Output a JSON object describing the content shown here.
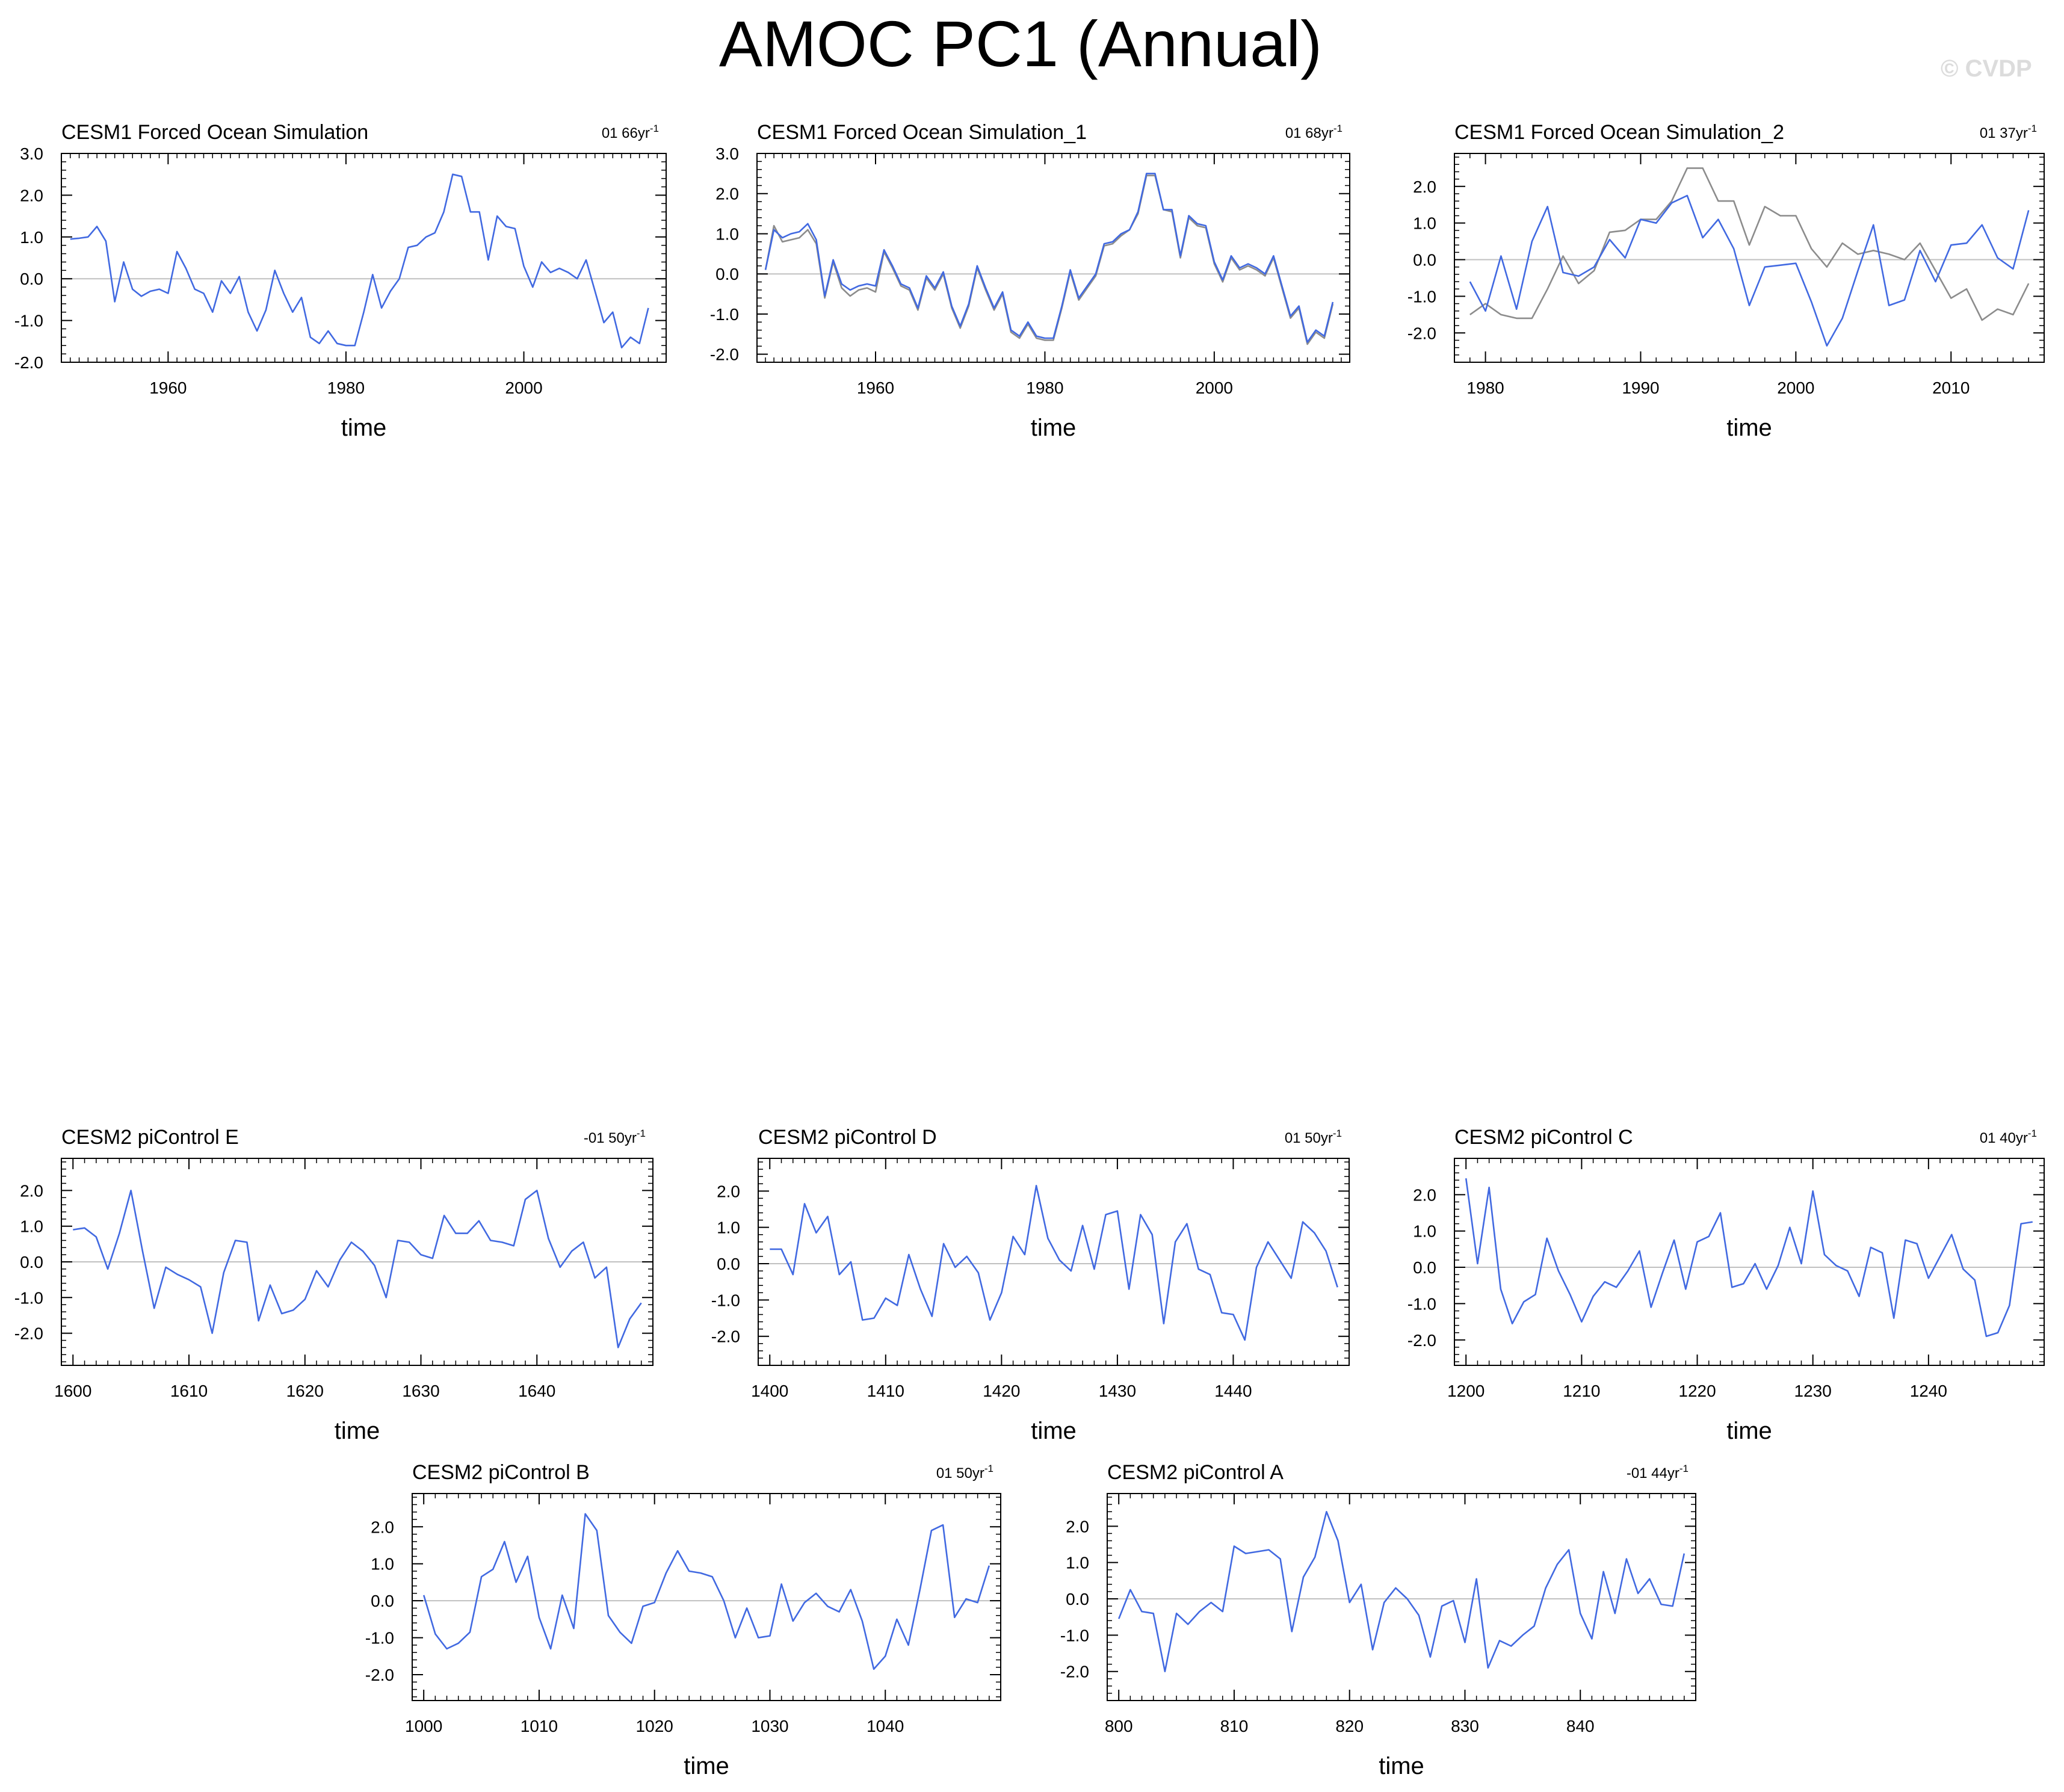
{
  "title": "AMOC PC1 (Annual)",
  "watermark": "© CVDP",
  "colors": {
    "pc": "#4169e1",
    "obs": "#8c8c8c",
    "zero": "#c0c0c0",
    "frame": "#000000"
  },
  "chart_data": [
    {
      "type": "line",
      "title": "CESM1 Forced Ocean Simulation",
      "annotation": "01 66yr-1",
      "xlabel": "time",
      "ylabel": "",
      "xlim": [
        1948,
        2016
      ],
      "ylim": [
        -2.0,
        3.0
      ],
      "xticks": [
        1960,
        1980,
        2000
      ],
      "yticks": [
        -2.0,
        -1.0,
        0.0,
        1.0,
        2.0,
        3.0
      ],
      "grid": false,
      "x_start": 1949,
      "series": [
        {
          "values": [
            0.95,
            0.97,
            1.0,
            1.25,
            0.9,
            -0.55,
            0.4,
            -0.25,
            -0.42,
            -0.3,
            -0.25,
            -0.35,
            0.65,
            0.25,
            -0.25,
            -0.35,
            -0.8,
            -0.05,
            -0.35,
            0.05,
            -0.8,
            -1.25,
            -0.75,
            0.2,
            -0.35,
            -0.8,
            -0.45,
            -1.4,
            -1.55,
            -1.25,
            -1.55,
            -1.6,
            -1.6,
            -0.8,
            0.1,
            -0.7,
            -0.3,
            0.0,
            0.75,
            0.8,
            1.0,
            1.1,
            1.6,
            2.5,
            2.45,
            1.6,
            1.6,
            0.45,
            1.5,
            1.25,
            1.2,
            0.3,
            -0.2,
            0.4,
            0.15,
            0.25,
            0.15,
            0.0,
            0.45,
            -0.3,
            -1.05,
            -0.8,
            -1.65,
            -1.4,
            -1.55,
            -0.7
          ]
        }
      ]
    },
    {
      "type": "line",
      "title": "CESM1 Forced Ocean Simulation_1",
      "annotation": "01 68yr-1",
      "xlabel": "time",
      "ylabel": "",
      "xlim": [
        1946,
        2016
      ],
      "ylim": [
        -2.2,
        3.0
      ],
      "xticks": [
        1960,
        1980,
        2000
      ],
      "yticks": [
        -2.0,
        -1.0,
        0.0,
        1.0,
        2.0,
        3.0
      ],
      "grid": false,
      "x_start": 1947,
      "series": [
        {
          "values": [
            0.1,
            1.1,
            0.9,
            1.0,
            1.05,
            1.25,
            0.85,
            -0.55,
            0.35,
            -0.25,
            -0.4,
            -0.3,
            -0.25,
            -0.3,
            0.6,
            0.2,
            -0.25,
            -0.35,
            -0.85,
            -0.05,
            -0.35,
            0.05,
            -0.8,
            -1.3,
            -0.75,
            0.2,
            -0.35,
            -0.85,
            -0.45,
            -1.4,
            -1.55,
            -1.2,
            -1.55,
            -1.6,
            -1.6,
            -0.8,
            0.1,
            -0.6,
            -0.3,
            0.0,
            0.75,
            0.8,
            1.0,
            1.1,
            1.55,
            2.5,
            2.5,
            1.6,
            1.6,
            0.45,
            1.45,
            1.25,
            1.2,
            0.3,
            -0.15,
            0.45,
            0.15,
            0.25,
            0.15,
            0.0,
            0.45,
            -0.3,
            -1.05,
            -0.8,
            -1.7,
            -1.4,
            -1.55,
            -0.7
          ]
        },
        {
          "values": [
            0.1,
            1.2,
            0.8,
            0.85,
            0.9,
            1.1,
            0.75,
            -0.6,
            0.3,
            -0.35,
            -0.55,
            -0.4,
            -0.35,
            -0.45,
            0.55,
            0.15,
            -0.3,
            -0.4,
            -0.9,
            -0.1,
            -0.4,
            0.0,
            -0.85,
            -1.35,
            -0.8,
            0.15,
            -0.4,
            -0.9,
            -0.5,
            -1.45,
            -1.6,
            -1.25,
            -1.6,
            -1.65,
            -1.65,
            -0.85,
            0.05,
            -0.65,
            -0.35,
            -0.05,
            0.7,
            0.75,
            0.95,
            1.1,
            1.5,
            2.45,
            2.45,
            1.6,
            1.55,
            0.4,
            1.4,
            1.2,
            1.15,
            0.25,
            -0.2,
            0.4,
            0.1,
            0.2,
            0.1,
            -0.05,
            0.4,
            -0.35,
            -1.1,
            -0.85,
            -1.75,
            -1.45,
            -1.6,
            -0.75
          ]
        }
      ]
    },
    {
      "type": "line",
      "title": "CESM1 Forced Ocean Simulation_2",
      "annotation": "01 37yr-1",
      "xlabel": "time",
      "ylabel": "",
      "xlim": [
        1978,
        2016
      ],
      "ylim": [
        -2.8,
        2.9
      ],
      "xticks": [
        1980,
        1990,
        2000,
        2010
      ],
      "yticks": [
        -2.0,
        -1.0,
        0.0,
        1.0,
        2.0
      ],
      "grid": false,
      "x_start": 1979,
      "series": [
        {
          "values": [
            -0.6,
            -1.4,
            0.1,
            -1.35,
            0.5,
            1.45,
            -0.35,
            -0.45,
            -0.2,
            0.55,
            0.05,
            1.1,
            1.0,
            1.55,
            1.75,
            0.6,
            1.1,
            0.3,
            -1.25,
            -0.2,
            -0.15,
            -0.1,
            -1.15,
            -2.35,
            -1.6,
            -0.3,
            0.95,
            -1.25,
            -1.1,
            0.25,
            -0.6,
            0.4,
            0.45,
            0.95,
            0.05,
            -0.25,
            1.35
          ]
        },
        {
          "values": [
            -1.5,
            -1.2,
            -1.5,
            -1.6,
            -1.6,
            -0.8,
            0.1,
            -0.65,
            -0.3,
            0.75,
            0.8,
            1.1,
            1.1,
            1.6,
            2.5,
            2.5,
            1.6,
            1.6,
            0.4,
            1.45,
            1.2,
            1.2,
            0.3,
            -0.2,
            0.45,
            0.15,
            0.25,
            0.15,
            0.0,
            0.45,
            -0.3,
            -1.05,
            -0.8,
            -1.65,
            -1.35,
            -1.5,
            -0.65
          ]
        }
      ]
    },
    {
      "type": "line",
      "title": "CESM2 piControl E",
      "annotation": "-01 50yr-1",
      "xlabel": "time",
      "ylabel": "",
      "xlim": [
        1599,
        1650
      ],
      "ylim": [
        -2.9,
        2.9
      ],
      "xticks": [
        1600,
        1610,
        1620,
        1630,
        1640
      ],
      "yticks": [
        -2.0,
        -1.0,
        0.0,
        1.0,
        2.0
      ],
      "grid": false,
      "x_start": 1600,
      "series": [
        {
          "values": [
            0.9,
            0.95,
            0.7,
            -0.2,
            0.8,
            2.0,
            0.3,
            -1.3,
            -0.15,
            -0.35,
            -0.5,
            -0.7,
            -2.0,
            -0.3,
            0.6,
            0.55,
            -1.65,
            -0.65,
            -1.45,
            -1.35,
            -1.05,
            -0.25,
            -0.7,
            0.05,
            0.55,
            0.3,
            -0.1,
            -1.0,
            0.6,
            0.55,
            0.2,
            0.1,
            1.3,
            0.8,
            0.8,
            1.15,
            0.6,
            0.55,
            0.45,
            1.75,
            2.0,
            0.65,
            -0.15,
            0.3,
            0.55,
            -0.45,
            -0.15,
            -2.4,
            -1.6,
            -1.15
          ]
        }
      ]
    },
    {
      "type": "line",
      "title": "CESM2 piControl D",
      "annotation": "01 50yr-1",
      "xlabel": "time",
      "ylabel": "",
      "xlim": [
        1399,
        1450
      ],
      "ylim": [
        -2.8,
        2.9
      ],
      "xticks": [
        1400,
        1410,
        1420,
        1430,
        1440
      ],
      "yticks": [
        -2.0,
        -1.0,
        0.0,
        1.0,
        2.0
      ],
      "grid": false,
      "x_start": 1400,
      "series": [
        {
          "values": [
            0.4,
            0.4,
            -0.3,
            1.65,
            0.85,
            1.3,
            -0.3,
            0.05,
            -1.55,
            -1.5,
            -0.95,
            -1.15,
            0.25,
            -0.7,
            -1.45,
            0.55,
            -0.1,
            0.2,
            -0.25,
            -1.55,
            -0.8,
            0.75,
            0.25,
            2.15,
            0.7,
            0.1,
            -0.2,
            1.05,
            -0.15,
            1.35,
            1.45,
            -0.7,
            1.35,
            0.8,
            -1.65,
            0.6,
            1.1,
            -0.15,
            -0.3,
            -1.35,
            -1.4,
            -2.1,
            -0.1,
            0.6,
            0.1,
            -0.4,
            1.15,
            0.85,
            0.35,
            -0.65
          ]
        }
      ]
    },
    {
      "type": "line",
      "title": "CESM2 piControl C",
      "annotation": "01 40yr-1",
      "xlabel": "time",
      "ylabel": "",
      "xlim": [
        1199,
        1250
      ],
      "ylim": [
        -2.7,
        3.0
      ],
      "xticks": [
        1200,
        1210,
        1220,
        1230,
        1240
      ],
      "yticks": [
        -2.0,
        -1.0,
        0.0,
        1.0,
        2.0
      ],
      "grid": false,
      "x_start": 1200,
      "series": [
        {
          "values": [
            2.45,
            0.1,
            2.2,
            -0.6,
            -1.55,
            -0.95,
            -0.75,
            0.8,
            -0.1,
            -0.75,
            -1.5,
            -0.8,
            -0.4,
            -0.55,
            -0.1,
            0.45,
            -1.1,
            -0.15,
            0.75,
            -0.6,
            0.7,
            0.85,
            1.5,
            -0.55,
            -0.45,
            0.1,
            -0.6,
            0.05,
            1.1,
            0.1,
            2.1,
            0.35,
            0.05,
            -0.1,
            -0.8,
            0.55,
            0.4,
            -1.4,
            0.75,
            0.65,
            -0.3,
            0.3,
            0.9,
            -0.05,
            -0.35,
            -1.9,
            -1.8,
            -1.05,
            1.2,
            1.25
          ]
        }
      ]
    },
    {
      "type": "line",
      "title": "CESM2 piControl B",
      "annotation": "01 50yr-1",
      "xlabel": "time",
      "ylabel": "",
      "xlim": [
        999,
        1050
      ],
      "ylim": [
        -2.7,
        2.9
      ],
      "xticks": [
        1000,
        1010,
        1020,
        1030,
        1040
      ],
      "yticks": [
        -2.0,
        -1.0,
        0.0,
        1.0,
        2.0
      ],
      "grid": false,
      "x_start": 1000,
      "series": [
        {
          "values": [
            0.15,
            -0.9,
            -1.3,
            -1.15,
            -0.85,
            0.65,
            0.85,
            1.6,
            0.5,
            1.2,
            -0.45,
            -1.3,
            0.15,
            -0.75,
            2.35,
            1.9,
            -0.4,
            -0.85,
            -1.15,
            -0.15,
            -0.05,
            0.75,
            1.35,
            0.8,
            0.75,
            0.65,
            0.0,
            -1.0,
            -0.2,
            -1.0,
            -0.95,
            0.45,
            -0.55,
            -0.05,
            0.2,
            -0.15,
            -0.3,
            0.3,
            -0.55,
            -1.85,
            -1.5,
            -0.5,
            -1.2,
            0.3,
            1.9,
            2.05,
            -0.45,
            0.05,
            -0.05,
            0.95
          ]
        }
      ]
    },
    {
      "type": "line",
      "title": "CESM2 piControl A",
      "annotation": "-01 44yr-1",
      "xlabel": "time",
      "ylabel": "",
      "xlim": [
        799,
        850
      ],
      "ylim": [
        -2.8,
        2.9
      ],
      "xticks": [
        800,
        810,
        820,
        830,
        840
      ],
      "yticks": [
        -2.0,
        -1.0,
        0.0,
        1.0,
        2.0
      ],
      "grid": false,
      "x_start": 800,
      "series": [
        {
          "values": [
            -0.55,
            0.25,
            -0.35,
            -0.4,
            -2.0,
            -0.4,
            -0.7,
            -0.35,
            -0.1,
            -0.35,
            1.45,
            1.25,
            1.3,
            1.35,
            1.1,
            -0.9,
            0.6,
            1.15,
            2.4,
            1.6,
            -0.1,
            0.4,
            -1.4,
            -0.1,
            0.3,
            0.0,
            -0.45,
            -1.6,
            -0.2,
            -0.05,
            -1.2,
            0.55,
            -1.9,
            -1.15,
            -1.3,
            -1.0,
            -0.75,
            0.3,
            0.95,
            1.35,
            -0.4,
            -1.1,
            0.75,
            -0.4,
            1.1,
            0.15,
            0.55,
            -0.15,
            -0.2,
            1.25
          ]
        }
      ]
    }
  ]
}
